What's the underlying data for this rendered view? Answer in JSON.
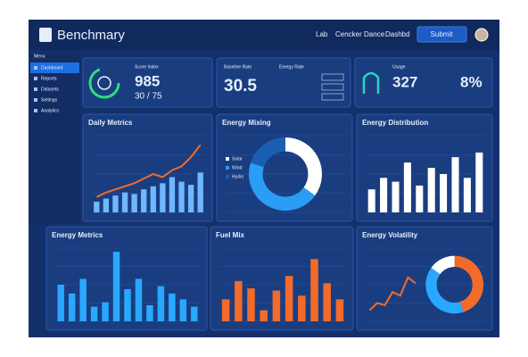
{
  "header": {
    "title": "Benchmary",
    "nav": [
      "Lab",
      "Cencker Dance",
      "Dashbd"
    ],
    "button": "Submit"
  },
  "sidebar": {
    "heading": "Menu",
    "items": [
      "Dashboard",
      "Reports",
      "Datasets",
      "Settings",
      "Analytics"
    ]
  },
  "kpis": [
    {
      "label": "Score Index",
      "value": "985",
      "sub": "30 / 75"
    },
    {
      "label": "Baseline Rate",
      "value": "30.5",
      "sub": "Energy Rate"
    },
    {
      "label": "Usage",
      "value": "327",
      "change": "8%"
    }
  ],
  "chart_data": [
    {
      "type": "bar",
      "title": "Daily Metrics",
      "ylim": [
        0,
        100
      ],
      "series": [
        {
          "type": "bar",
          "color": "#6fb7ff",
          "values": [
            14,
            18,
            22,
            26,
            24,
            30,
            34,
            38,
            46,
            40,
            36,
            52
          ]
        },
        {
          "type": "line",
          "color": "#f26b2a",
          "values": [
            20,
            26,
            30,
            34,
            38,
            44,
            50,
            46,
            55,
            60,
            72,
            88
          ]
        }
      ]
    },
    {
      "type": "pie",
      "title": "Energy Mixing",
      "labels": [
        "Solar",
        "Wind",
        "Hydro"
      ],
      "series": [
        {
          "type": "donut",
          "colors": [
            "#ffffff",
            "#2a9df4",
            "#1a5fb4"
          ],
          "values": [
            35,
            45,
            20
          ]
        }
      ]
    },
    {
      "type": "bar",
      "title": "Energy Distribution",
      "ylim": [
        0,
        100
      ],
      "series": [
        {
          "type": "bar",
          "color": "#ffffff",
          "values": [
            30,
            45,
            40,
            65,
            35,
            58,
            50,
            72,
            45,
            78
          ]
        }
      ]
    },
    {
      "type": "bar",
      "title": "Energy Metrics",
      "ylim": [
        0,
        100
      ],
      "series": [
        {
          "type": "bar",
          "color": "#29a8ff",
          "values": [
            50,
            38,
            58,
            20,
            26,
            95,
            44,
            58,
            22,
            48,
            38,
            30,
            20
          ]
        }
      ]
    },
    {
      "type": "bar",
      "title": "Fuel Mix",
      "ylim": [
        0,
        100
      ],
      "series": [
        {
          "type": "bar",
          "color": "#f26b2a",
          "values": [
            30,
            55,
            45,
            15,
            42,
            62,
            35,
            85,
            52,
            30
          ]
        }
      ]
    },
    {
      "type": "combo",
      "title": "Energy Volatility",
      "ylim": [
        0,
        100
      ],
      "series": [
        {
          "type": "line",
          "color": "#f26b2a",
          "values": [
            15,
            25,
            22,
            40,
            35,
            60,
            52
          ]
        },
        {
          "type": "donut",
          "colors": [
            "#f26b2a",
            "#29a8ff",
            "#ffffff"
          ],
          "values": [
            45,
            40,
            15
          ]
        }
      ]
    }
  ]
}
